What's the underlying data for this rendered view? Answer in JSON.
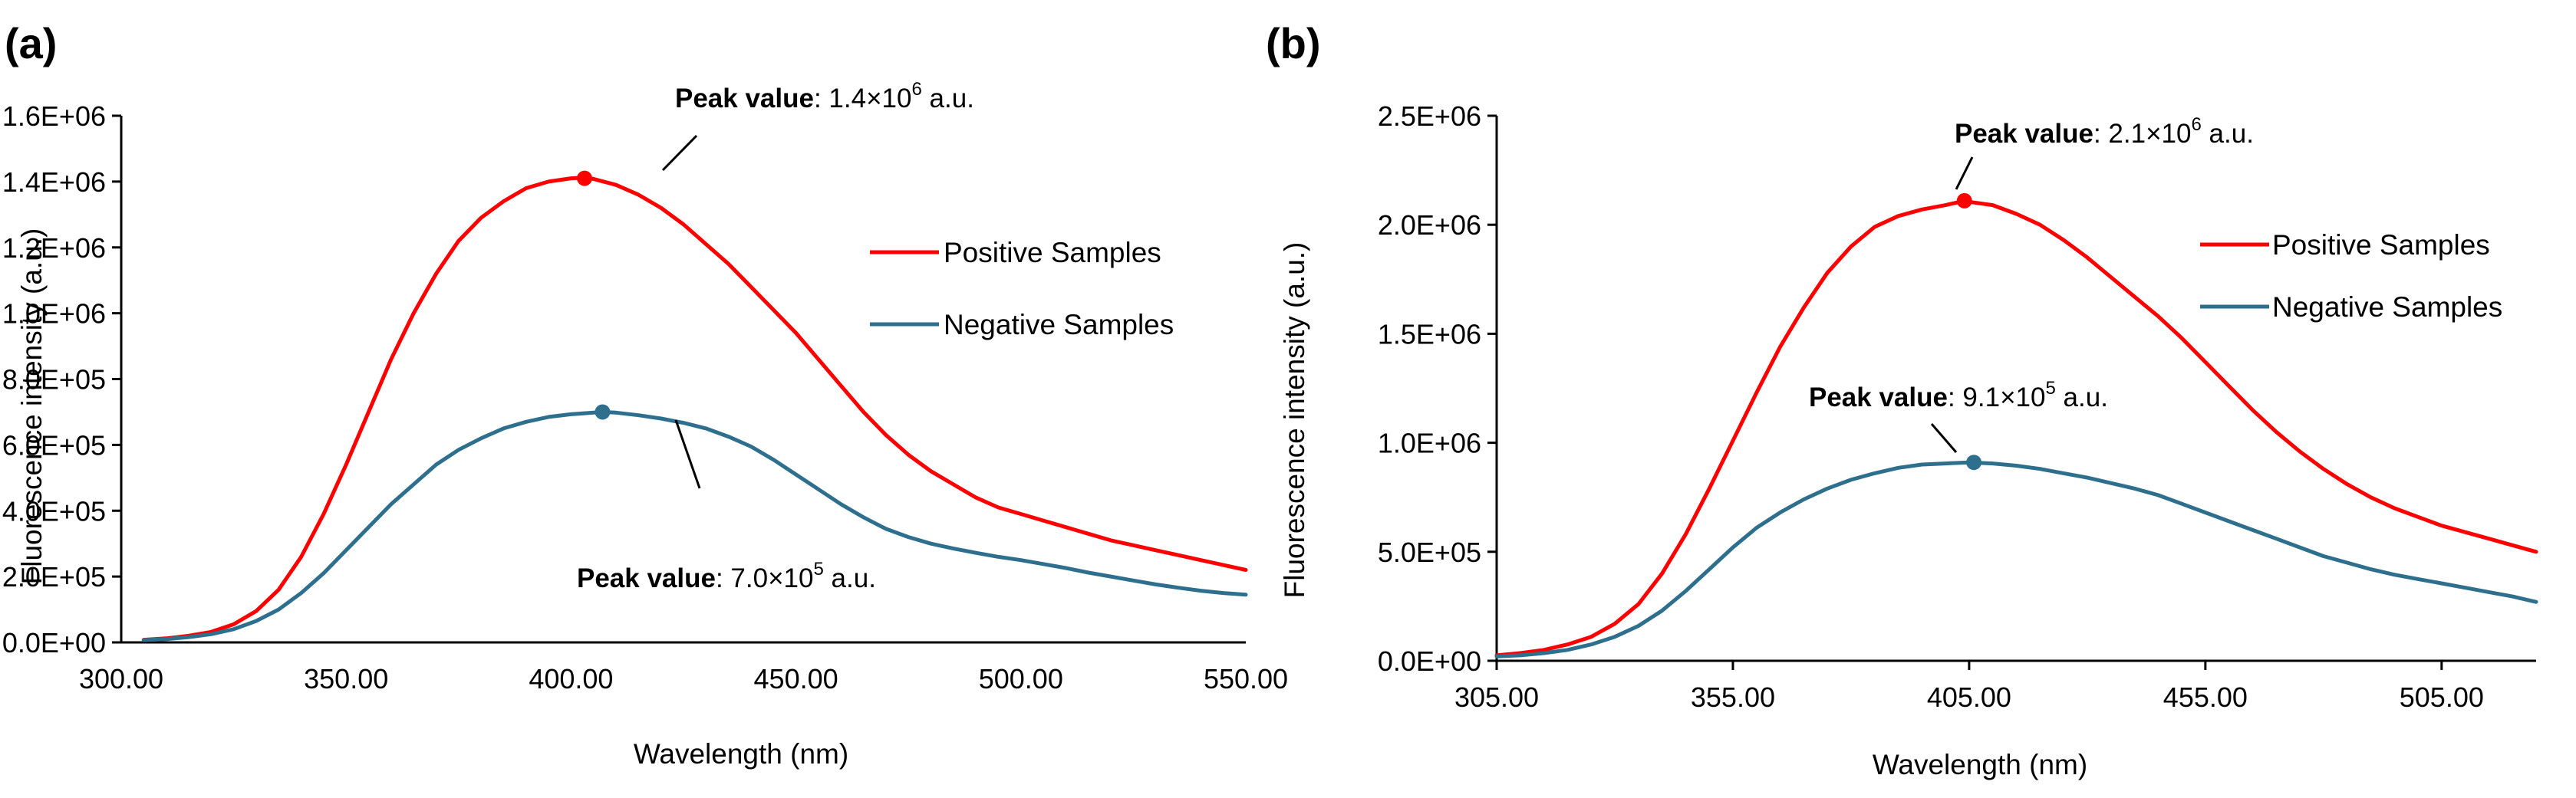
{
  "colors": {
    "positive": "#ff0000",
    "negative": "#2e6f8e",
    "axis": "#000000"
  },
  "chart_data": [
    {
      "type": "line",
      "panel_label": "(a)",
      "xlabel": "Wavelength (nm)",
      "ylabel": "Fluorescence intensity (a.u.)",
      "xlim": [
        300,
        550
      ],
      "ylim": [
        0,
        1600000
      ],
      "x_ticks": [
        "300.00",
        "350.00",
        "400.00",
        "450.00",
        "500.00",
        "550.00"
      ],
      "x_tick_values": [
        300,
        350,
        400,
        450,
        500,
        550
      ],
      "y_ticks": [
        "0.0E+00",
        "2.0E+05",
        "4.0E+05",
        "6.0E+05",
        "8.0E+05",
        "1.0E+06",
        "1.2E+06",
        "1.4E+06",
        "1.6E+06"
      ],
      "y_tick_values": [
        0,
        200000,
        400000,
        600000,
        800000,
        1000000,
        1200000,
        1400000,
        1600000
      ],
      "grid": false,
      "legend_position": "right",
      "series": [
        {
          "name": "Positive Samples",
          "color": "#ff0000",
          "x": [
            305,
            310,
            315,
            320,
            325,
            330,
            335,
            340,
            345,
            350,
            355,
            360,
            365,
            370,
            375,
            380,
            385,
            390,
            395,
            400,
            403,
            405,
            410,
            415,
            420,
            425,
            430,
            435,
            440,
            445,
            450,
            455,
            460,
            465,
            470,
            475,
            480,
            485,
            490,
            495,
            500,
            505,
            510,
            515,
            520,
            525,
            530,
            535,
            540,
            545,
            550
          ],
          "values": [
            8000,
            12000,
            20000,
            32000,
            55000,
            95000,
            160000,
            260000,
            390000,
            540000,
            700000,
            860000,
            1000000,
            1120000,
            1220000,
            1290000,
            1340000,
            1380000,
            1400000,
            1410000,
            1412000,
            1408000,
            1390000,
            1360000,
            1320000,
            1270000,
            1210000,
            1150000,
            1080000,
            1010000,
            940000,
            860000,
            780000,
            700000,
            630000,
            570000,
            520000,
            480000,
            440000,
            410000,
            390000,
            370000,
            350000,
            330000,
            310000,
            295000,
            280000,
            265000,
            250000,
            235000,
            220000
          ]
        },
        {
          "name": "Negative Samples",
          "color": "#2e6f8e",
          "x": [
            305,
            310,
            315,
            320,
            325,
            330,
            335,
            340,
            345,
            350,
            355,
            360,
            365,
            370,
            375,
            380,
            385,
            390,
            395,
            400,
            405,
            407,
            410,
            415,
            420,
            425,
            430,
            435,
            440,
            445,
            450,
            455,
            460,
            465,
            470,
            475,
            480,
            485,
            490,
            495,
            500,
            505,
            510,
            515,
            520,
            525,
            530,
            535,
            540,
            545,
            550
          ],
          "values": [
            7000,
            10000,
            16000,
            25000,
            40000,
            65000,
            100000,
            150000,
            210000,
            280000,
            350000,
            420000,
            480000,
            540000,
            585000,
            620000,
            650000,
            670000,
            685000,
            693000,
            698000,
            700000,
            698000,
            690000,
            680000,
            667000,
            650000,
            625000,
            595000,
            555000,
            510000,
            465000,
            420000,
            380000,
            345000,
            320000,
            300000,
            285000,
            272000,
            260000,
            250000,
            238000,
            226000,
            212000,
            200000,
            188000,
            176000,
            166000,
            157000,
            150000,
            145000
          ]
        }
      ],
      "annotations": [
        {
          "bold": "Peak value",
          "text": ": 1.4×10",
          "sup": "6",
          "unit": " a.u.",
          "x": 403,
          "y": 1410000
        },
        {
          "bold": "Peak value",
          "text": ": 7.0×10",
          "sup": "5",
          "unit": " a.u.",
          "x": 407,
          "y": 700000
        }
      ]
    },
    {
      "type": "line",
      "panel_label": "(b)",
      "xlabel": "Wavelength (nm)",
      "ylabel": "Fluorescence intensity (a.u.)",
      "xlim": [
        305,
        525
      ],
      "ylim": [
        0,
        2500000
      ],
      "x_ticks": [
        "305.00",
        "355.00",
        "405.00",
        "455.00",
        "505.00"
      ],
      "x_tick_values": [
        305,
        355,
        405,
        455,
        505
      ],
      "y_ticks": [
        "0.0E+00",
        "5.0E+05",
        "1.0E+06",
        "1.5E+06",
        "2.0E+06",
        "2.5E+06"
      ],
      "y_tick_values": [
        0,
        500000,
        1000000,
        1500000,
        2000000,
        2500000
      ],
      "grid": false,
      "legend_position": "right",
      "series": [
        {
          "name": "Positive Samples",
          "color": "#ff0000",
          "x": [
            305,
            310,
            315,
            320,
            325,
            330,
            335,
            340,
            345,
            350,
            355,
            360,
            365,
            370,
            375,
            380,
            385,
            390,
            395,
            400,
            404,
            405,
            410,
            415,
            420,
            425,
            430,
            435,
            440,
            445,
            450,
            455,
            460,
            465,
            470,
            475,
            480,
            485,
            490,
            495,
            500,
            505,
            510,
            515,
            520,
            525
          ],
          "values": [
            25000,
            35000,
            50000,
            75000,
            110000,
            170000,
            260000,
            400000,
            580000,
            790000,
            1010000,
            1230000,
            1440000,
            1620000,
            1780000,
            1900000,
            1990000,
            2040000,
            2070000,
            2090000,
            2110000,
            2105000,
            2090000,
            2050000,
            2000000,
            1930000,
            1850000,
            1760000,
            1670000,
            1580000,
            1480000,
            1370000,
            1260000,
            1150000,
            1050000,
            960000,
            880000,
            810000,
            750000,
            700000,
            660000,
            620000,
            590000,
            560000,
            530000,
            500000
          ]
        },
        {
          "name": "Negative Samples",
          "color": "#2e6f8e",
          "x": [
            305,
            310,
            315,
            320,
            325,
            330,
            335,
            340,
            345,
            350,
            355,
            360,
            365,
            370,
            375,
            380,
            385,
            390,
            395,
            400,
            405,
            410,
            415,
            420,
            425,
            430,
            435,
            440,
            445,
            450,
            455,
            460,
            465,
            470,
            475,
            480,
            485,
            490,
            495,
            500,
            505,
            510,
            515,
            520,
            525
          ],
          "values": [
            20000,
            25000,
            35000,
            50000,
            75000,
            110000,
            160000,
            230000,
            320000,
            420000,
            520000,
            610000,
            680000,
            740000,
            790000,
            830000,
            860000,
            885000,
            900000,
            905000,
            910000,
            905000,
            895000,
            880000,
            860000,
            840000,
            815000,
            790000,
            760000,
            720000,
            680000,
            640000,
            600000,
            560000,
            520000,
            480000,
            450000,
            420000,
            395000,
            375000,
            355000,
            335000,
            315000,
            295000,
            270000
          ]
        }
      ],
      "annotations": [
        {
          "bold": "Peak value",
          "text": ": 2.1×10",
          "sup": "6",
          "unit": " a.u.",
          "x": 404,
          "y": 2110000
        },
        {
          "bold": "Peak value",
          "text": ": 9.1×10",
          "sup": "5",
          "unit": " a.u.",
          "x": 406,
          "y": 910000
        }
      ]
    }
  ]
}
